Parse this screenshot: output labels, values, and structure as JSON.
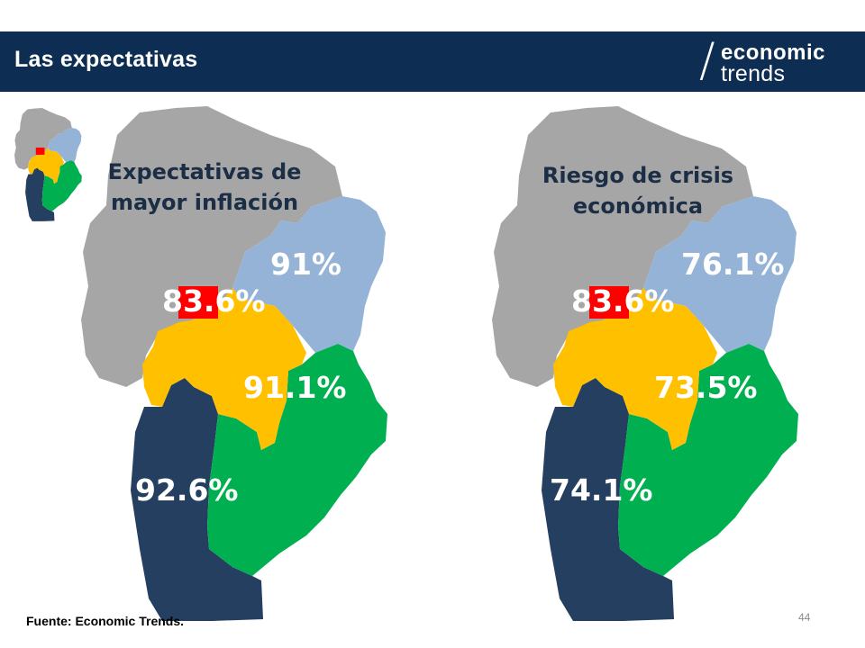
{
  "header": {
    "title": "Las expectativas"
  },
  "logo": {
    "line1": "economic",
    "line2": "trends"
  },
  "maps": [
    {
      "title_line1": "Expectativas de",
      "title_line2": "mayor inflación",
      "regions": {
        "north_east": "91%",
        "capital": "83.6%",
        "center": "91.1%",
        "south_west": "92.6%"
      }
    },
    {
      "title_line1": "Riesgo de crisis",
      "title_line2": "económica",
      "regions": {
        "north_east": "76.1%",
        "capital": "83.6%",
        "center": "73.5%",
        "south_west": "74.1%"
      }
    }
  ],
  "colors": {
    "header_bg": "#0e2d52",
    "north_gray": "#a6a6a6",
    "north_east_blue": "#95b3d7",
    "capital_red": "#ff0000",
    "center_yellow": "#ffc000",
    "south_west_navy": "#243f60",
    "south_east_green": "#00b050",
    "label_light": "#ffffff",
    "label_dark": "#1c2e45"
  },
  "footer": {
    "source": "Fuente: Economic Trends.",
    "page": "44"
  }
}
